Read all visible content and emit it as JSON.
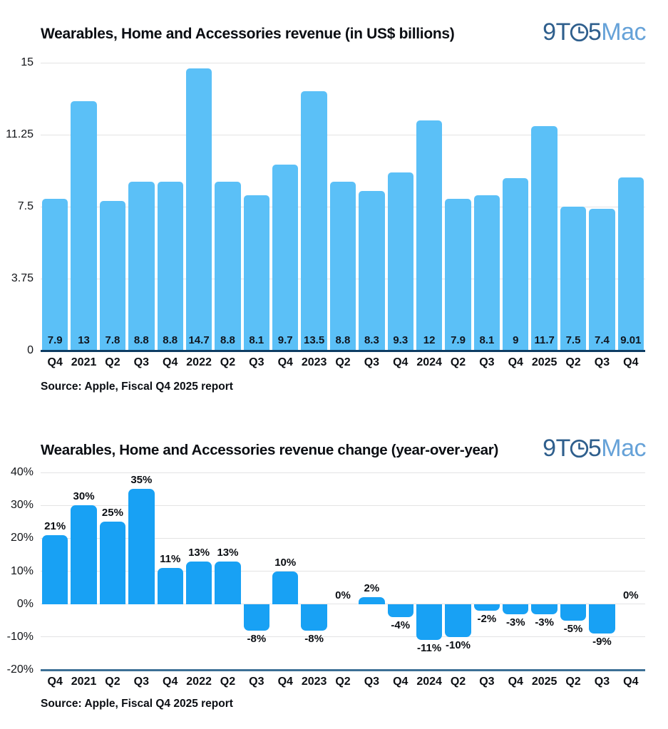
{
  "logo": {
    "part1": "9T",
    "part2": "5",
    "mac": "Mac",
    "dark_color": "#2f5f8d",
    "light_color": "#66a2d8"
  },
  "chart_data": [
    {
      "type": "bar",
      "title": "Wearables, Home and Accessories revenue (in US$ billions)",
      "source": "Source: Apple, Fiscal Q4 2025 report",
      "categories": [
        "Q4",
        "2021",
        "Q2",
        "Q3",
        "Q4",
        "2022",
        "Q2",
        "Q3",
        "Q4",
        "2023",
        "Q2",
        "Q3",
        "Q4",
        "2024",
        "Q2",
        "Q3",
        "Q4",
        "2025",
        "Q2",
        "Q3",
        "Q4"
      ],
      "values": [
        7.9,
        13,
        7.8,
        8.8,
        8.8,
        14.7,
        8.8,
        8.1,
        9.7,
        13.5,
        8.8,
        8.3,
        9.3,
        12,
        7.9,
        8.1,
        9,
        11.7,
        7.5,
        7.4,
        9.01
      ],
      "value_labels": [
        "7.9",
        "13",
        "7.8",
        "8.8",
        "8.8",
        "14.7",
        "8.8",
        "8.1",
        "9.7",
        "13.5",
        "8.8",
        "8.3",
        "9.3",
        "12",
        "7.9",
        "8.1",
        "9",
        "11.7",
        "7.5",
        "7.4",
        "9.01"
      ],
      "ylabel": "",
      "xlabel": "",
      "ylim": [
        0,
        15
      ],
      "yticks": [
        {
          "v": 15,
          "label": "15"
        },
        {
          "v": 11.25,
          "label": "11.25"
        },
        {
          "v": 7.5,
          "label": "7.5"
        },
        {
          "v": 3.75,
          "label": "3.75"
        },
        {
          "v": 0,
          "label": "0"
        }
      ],
      "axis_value": 0,
      "grid": true,
      "legend": false,
      "bar_color": "#5bc0f7",
      "axis_color": "#0e3d63",
      "value_label_color": "#10161f",
      "label_position": "inside-bottom",
      "bar_radius": 5
    },
    {
      "type": "bar",
      "title": "Wearables, Home and Accessories revenue change (year-over-year)",
      "source": "Source: Apple, Fiscal Q4 2025 report",
      "categories": [
        "Q4",
        "2021",
        "Q2",
        "Q3",
        "Q4",
        "2022",
        "Q2",
        "Q3",
        "Q4",
        "2023",
        "Q2",
        "Q3",
        "Q4",
        "2024",
        "Q2",
        "Q3",
        "Q4",
        "2025",
        "Q2",
        "Q3",
        "Q4"
      ],
      "values": [
        21,
        30,
        25,
        35,
        11,
        13,
        13,
        -8,
        10,
        -8,
        0,
        2,
        -4,
        -11,
        -10,
        -2,
        -3,
        -3,
        -5,
        -9,
        0
      ],
      "value_labels": [
        "21%",
        "30%",
        "25%",
        "35%",
        "11%",
        "13%",
        "13%",
        "-8%",
        "10%",
        "-8%",
        "0%",
        "2%",
        "-4%",
        "-11%",
        "-10%",
        "-2%",
        "-3%",
        "-3%",
        "-5%",
        "-9%",
        "0%"
      ],
      "ylabel": "",
      "xlabel": "",
      "ylim": [
        -20,
        40
      ],
      "yticks": [
        {
          "v": 40,
          "label": "40%"
        },
        {
          "v": 30,
          "label": "30%"
        },
        {
          "v": 20,
          "label": "20%"
        },
        {
          "v": 10,
          "label": "10%"
        },
        {
          "v": 0,
          "label": "0%"
        },
        {
          "v": -10,
          "label": "-10%"
        },
        {
          "v": -20,
          "label": "-20%"
        }
      ],
      "axis_value": -20,
      "grid": true,
      "legend": false,
      "bar_color": "#18a1f4",
      "axis_color": "#3c7096",
      "value_label_color": "#0b0e13",
      "label_position": "outside-end",
      "bar_radius": 7
    }
  ]
}
